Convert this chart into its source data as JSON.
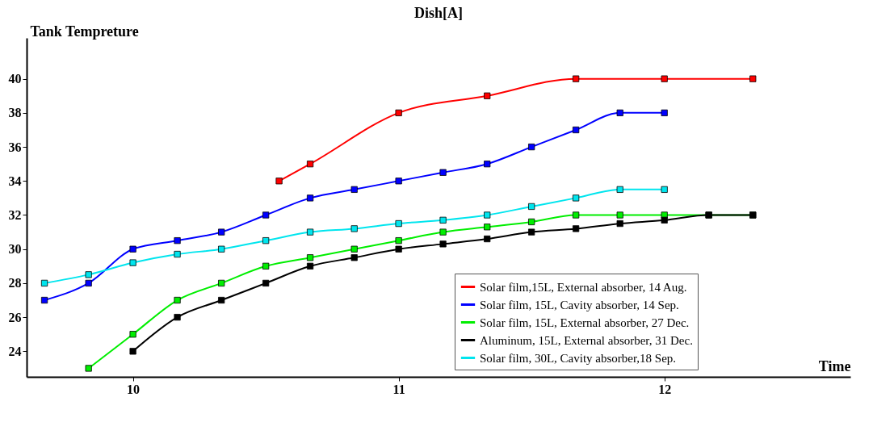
{
  "chart_data": {
    "type": "line",
    "title": "Dish[A]",
    "xlabel": "Time",
    "ylabel": "Tank Tempreture",
    "xlim": [
      9.6,
      12.7
    ],
    "xticks": [
      10,
      11,
      12
    ],
    "ylim": [
      22.5,
      42.4
    ],
    "yticks": [
      24,
      26,
      28,
      30,
      32,
      34,
      36,
      38,
      40
    ],
    "grid": false,
    "legend": "bottom right",
    "marker": "square",
    "line_style": "solid",
    "series": [
      {
        "name": "Solar film,15L, External absorber, 14 Aug.",
        "color": "#ff0000",
        "x": [
          10.55,
          10.667,
          11,
          11.333,
          11.667,
          12,
          12.333
        ],
        "values": [
          34,
          35,
          38,
          39,
          40,
          40,
          40
        ]
      },
      {
        "name": "Solar film, 15L, Cavity absorber, 14 Sep.",
        "color": "#0000ff",
        "x": [
          9.667,
          9.833,
          10,
          10.167,
          10.333,
          10.5,
          10.667,
          10.833,
          11,
          11.167,
          11.333,
          11.5,
          11.667,
          11.833,
          12
        ],
        "values": [
          27,
          28,
          30,
          30.5,
          31,
          32,
          33,
          33.5,
          34,
          34.5,
          35,
          36,
          37,
          38,
          38
        ]
      },
      {
        "name": "Solar film, 15L, External absorber, 27 Dec.",
        "color": "#00ee00",
        "x": [
          9.833,
          10,
          10.167,
          10.333,
          10.5,
          10.667,
          10.833,
          11,
          11.167,
          11.333,
          11.5,
          11.667,
          11.833,
          12,
          12.167,
          12.333
        ],
        "values": [
          23,
          25,
          27,
          28,
          29,
          29.5,
          30,
          30.5,
          31,
          31.3,
          31.6,
          32,
          32,
          32,
          32,
          32
        ]
      },
      {
        "name": "Aluminum, 15L, External absorber, 31 Dec.",
        "color": "#000000",
        "x": [
          10,
          10.167,
          10.333,
          10.5,
          10.667,
          10.833,
          11,
          11.167,
          11.333,
          11.5,
          11.667,
          11.833,
          12,
          12.167,
          12.333
        ],
        "values": [
          24,
          26,
          27,
          28,
          29,
          29.5,
          30,
          30.3,
          30.6,
          31,
          31.2,
          31.5,
          31.7,
          32,
          32
        ]
      },
      {
        "name": "Solar film, 30L, Cavity absorber,18 Sep.",
        "color": "#00e5ee",
        "x": [
          9.667,
          9.833,
          10,
          10.167,
          10.333,
          10.5,
          10.667,
          10.833,
          11,
          11.167,
          11.333,
          11.5,
          11.667,
          11.833,
          12
        ],
        "values": [
          28,
          28.5,
          29.2,
          29.7,
          30,
          30.5,
          31,
          31.2,
          31.5,
          31.7,
          32,
          32.5,
          33,
          33.5,
          33.5
        ]
      }
    ]
  }
}
